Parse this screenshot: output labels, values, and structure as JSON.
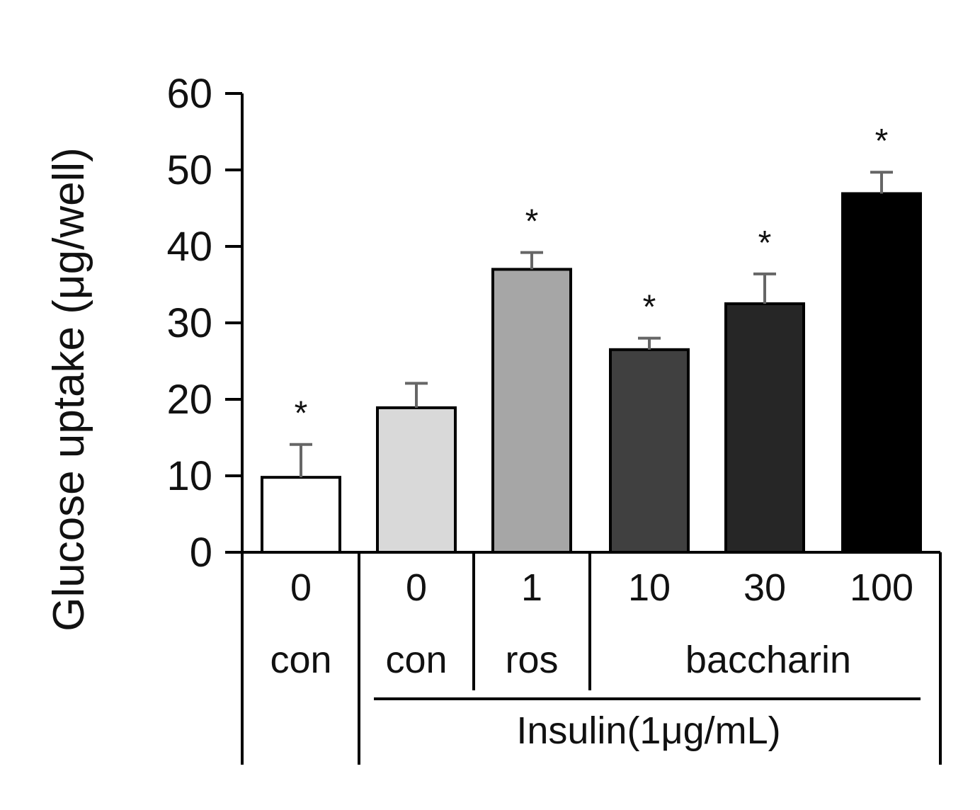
{
  "chart_data": {
    "type": "bar",
    "title": "",
    "xlabel": "",
    "ylabel": "Glucose uptake (μg/well)",
    "ylim": [
      0,
      60
    ],
    "yticks": [
      0,
      10,
      20,
      30,
      40,
      50,
      60
    ],
    "categories": [
      "0",
      "0",
      "1",
      "10",
      "30",
      "100"
    ],
    "treatments": [
      "con",
      "con",
      "ros",
      "baccharin",
      "baccharin",
      "baccharin"
    ],
    "group_labels": [
      "con",
      "con",
      "ros",
      "baccharin"
    ],
    "values": [
      9.8,
      18.9,
      37.0,
      26.5,
      32.5,
      46.9
    ],
    "errors": [
      4.3,
      3.2,
      2.2,
      1.5,
      3.9,
      2.8
    ],
    "significance": [
      "*",
      "",
      "*",
      "*",
      "*",
      "*"
    ],
    "bar_colors": [
      "#ffffff",
      "#d9d9d9",
      "#a6a6a6",
      "#404040",
      "#262626",
      "#000000"
    ],
    "insulin_label": "Insulin(1μg/mL)"
  }
}
